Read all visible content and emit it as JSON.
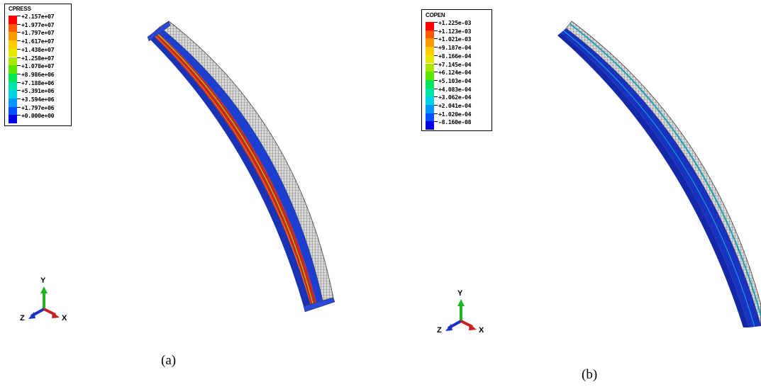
{
  "panels": [
    {
      "legend_title": "CPRESS",
      "legend_values": [
        "+2.157e+07",
        "+1.977e+07",
        "+1.797e+07",
        "+1.617e+07",
        "+1.438e+07",
        "+1.258e+07",
        "+1.078e+07",
        "+8.986e+06",
        "+7.188e+06",
        "+5.391e+06",
        "+3.594e+06",
        "+1.797e+06",
        "+0.000e+00"
      ],
      "caption": "(a)",
      "axes": {
        "y": "Y",
        "z": "Z",
        "x": "X"
      }
    },
    {
      "legend_title": "COPEN",
      "legend_values": [
        "+1.225e-03",
        "+1.123e-03",
        "+1.021e-03",
        "+9.187e-04",
        "+8.166e-04",
        "+7.145e-04",
        "+6.124e-04",
        "+5.103e-04",
        "+4.083e-04",
        "+3.062e-04",
        "+2.041e-04",
        "+1.020e-04",
        "-8.160e-08"
      ],
      "caption": "(b)",
      "axes": {
        "y": "Y",
        "z": "Z",
        "x": "X"
      }
    }
  ],
  "colors": {
    "contour_scale": [
      "#ff0000",
      "#ff5a00",
      "#ff9a00",
      "#ffcc00",
      "#e6e600",
      "#a8e600",
      "#5ae600",
      "#00e65a",
      "#00e6aa",
      "#00d2e6",
      "#0096ff",
      "#0050ff",
      "#0000e6"
    ],
    "axis_y": "#22b422",
    "axis_x": "#c81e1e",
    "axis_z": "#1e32c8",
    "mesh_grey": "#9a9a9a",
    "beam_blue": "#1838c8"
  }
}
